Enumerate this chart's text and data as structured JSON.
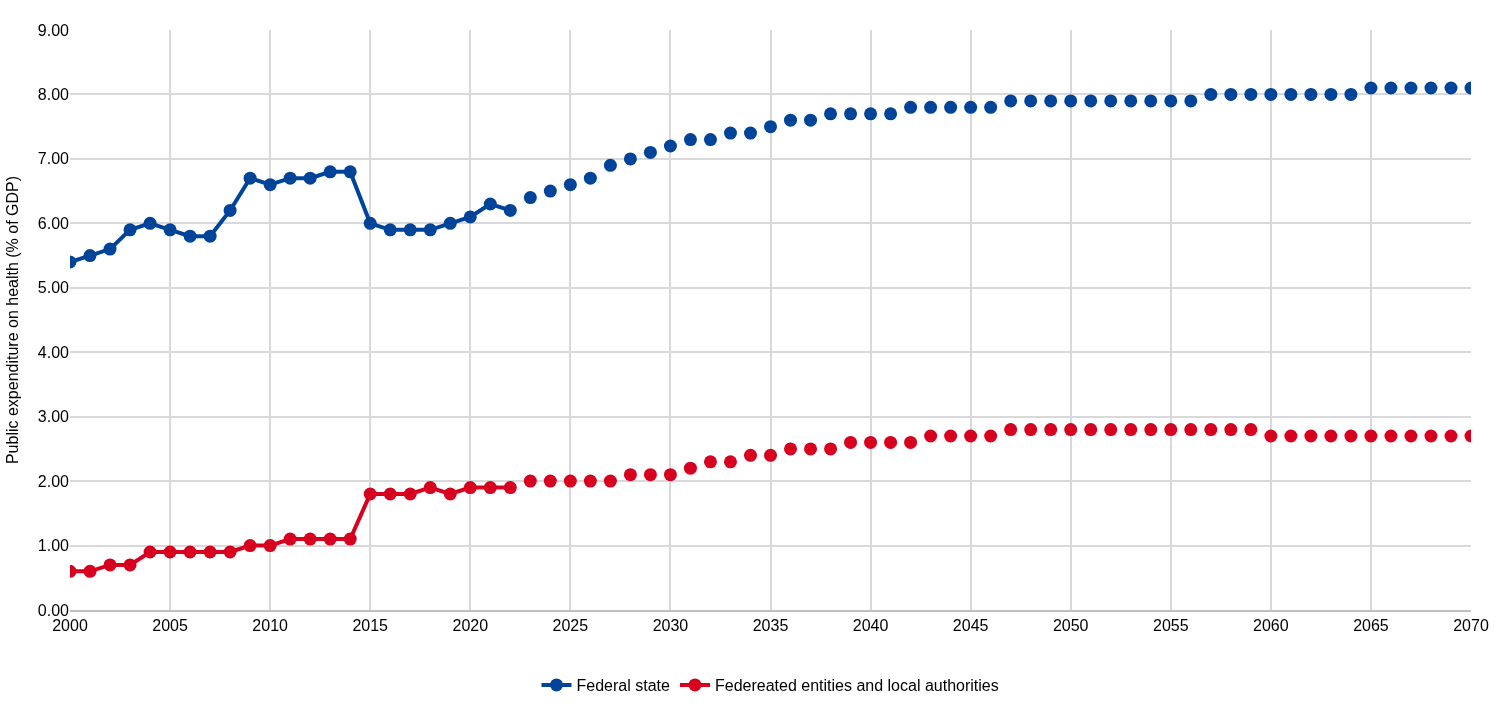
{
  "chart_data": {
    "type": "line",
    "ylabel": "Public expenditure on health (% of GDP)",
    "xlim": [
      2000,
      2070
    ],
    "xticks": [
      2000,
      2005,
      2010,
      2015,
      2020,
      2025,
      2030,
      2035,
      2040,
      2045,
      2050,
      2055,
      2060,
      2065,
      2070
    ],
    "ylim": [
      0,
      9
    ],
    "yticks": [
      {
        "value": 0,
        "label": "0.00"
      },
      {
        "value": 1,
        "label": "1.00"
      },
      {
        "value": 2,
        "label": "2.00"
      },
      {
        "value": 3,
        "label": "3.00"
      },
      {
        "value": 4,
        "label": "4.00"
      },
      {
        "value": 5,
        "label": "5.00"
      },
      {
        "value": 6,
        "label": "6.00"
      },
      {
        "value": 7,
        "label": "7.00"
      },
      {
        "value": 8,
        "label": "8.00"
      },
      {
        "value": 9,
        "label": "9.00"
      }
    ],
    "grid": true,
    "legend": "bottom",
    "marker": "circle",
    "line_style": "solid",
    "series": [
      {
        "name": "Federal state",
        "color": "#00449a",
        "x": [
          2000,
          2001,
          2002,
          2003,
          2004,
          2005,
          2006,
          2007,
          2008,
          2009,
          2010,
          2011,
          2012,
          2013,
          2014,
          2015,
          2016,
          2017,
          2018,
          2019,
          2020,
          2021,
          2022
        ],
        "values": [
          5.4,
          5.5,
          5.6,
          5.9,
          6.0,
          5.9,
          5.8,
          5.8,
          6.2,
          6.7,
          6.6,
          6.7,
          6.7,
          6.8,
          6.8,
          6.0,
          5.9,
          5.9,
          5.9,
          6.0,
          6.1,
          6.3,
          6.2
        ]
      },
      {
        "name": "Federeated entities and local authorities",
        "color": "#d7001f",
        "x": [
          2000,
          2001,
          2002,
          2003,
          2004,
          2005,
          2006,
          2007,
          2008,
          2009,
          2010,
          2011,
          2012,
          2013,
          2014,
          2015,
          2016,
          2017,
          2018,
          2019,
          2020,
          2021,
          2022
        ],
        "values": [
          0.6,
          0.6,
          0.7,
          0.7,
          0.9,
          0.9,
          0.9,
          0.9,
          0.9,
          1.0,
          1.0,
          1.1,
          1.1,
          1.1,
          1.1,
          1.8,
          1.8,
          1.8,
          1.9,
          1.8,
          1.9,
          1.9,
          1.9
        ]
      },
      {
        "color": "#00449a",
        "type": "scatter",
        "x": [
          2023,
          2024,
          2025,
          2026,
          2027,
          2028,
          2029,
          2030,
          2031,
          2032,
          2033,
          2034,
          2035,
          2036,
          2037,
          2038,
          2039,
          2040,
          2041,
          2042,
          2043,
          2044,
          2045,
          2046,
          2047,
          2048,
          2049,
          2050,
          2051,
          2052,
          2053,
          2054,
          2055,
          2056,
          2057,
          2058,
          2059,
          2060,
          2061,
          2062,
          2063,
          2064,
          2065,
          2066,
          2067,
          2068,
          2069,
          2070
        ],
        "values": [
          6.4,
          6.5,
          6.6,
          6.7,
          6.9,
          7.0,
          7.1,
          7.2,
          7.3,
          7.3,
          7.4,
          7.4,
          7.5,
          7.6,
          7.6,
          7.7,
          7.7,
          7.7,
          7.7,
          7.8,
          7.8,
          7.8,
          7.8,
          7.8,
          7.9,
          7.9,
          7.9,
          7.9,
          7.9,
          7.9,
          7.9,
          7.9,
          7.9,
          7.9,
          8.0,
          8.0,
          8.0,
          8.0,
          8.0,
          8.0,
          8.0,
          8.0,
          8.1,
          8.1,
          8.1,
          8.1,
          8.1,
          8.1
        ]
      },
      {
        "color": "#d7001f",
        "type": "scatter",
        "x": [
          2023,
          2024,
          2025,
          2026,
          2027,
          2028,
          2029,
          2030,
          2031,
          2032,
          2033,
          2034,
          2035,
          2036,
          2037,
          2038,
          2039,
          2040,
          2041,
          2042,
          2043,
          2044,
          2045,
          2046,
          2047,
          2048,
          2049,
          2050,
          2051,
          2052,
          2053,
          2054,
          2055,
          2056,
          2057,
          2058,
          2059,
          2060,
          2061,
          2062,
          2063,
          2064,
          2065,
          2066,
          2067,
          2068,
          2069,
          2070
        ],
        "values": [
          2.0,
          2.0,
          2.0,
          2.0,
          2.0,
          2.1,
          2.1,
          2.1,
          2.2,
          2.3,
          2.3,
          2.4,
          2.4,
          2.5,
          2.5,
          2.5,
          2.6,
          2.6,
          2.6,
          2.6,
          2.7,
          2.7,
          2.7,
          2.7,
          2.8,
          2.8,
          2.8,
          2.8,
          2.8,
          2.8,
          2.8,
          2.8,
          2.8,
          2.8,
          2.8,
          2.8,
          2.8,
          2.7,
          2.7,
          2.7,
          2.7,
          2.7,
          2.7,
          2.7,
          2.7,
          2.7,
          2.7,
          2.7
        ]
      }
    ]
  }
}
